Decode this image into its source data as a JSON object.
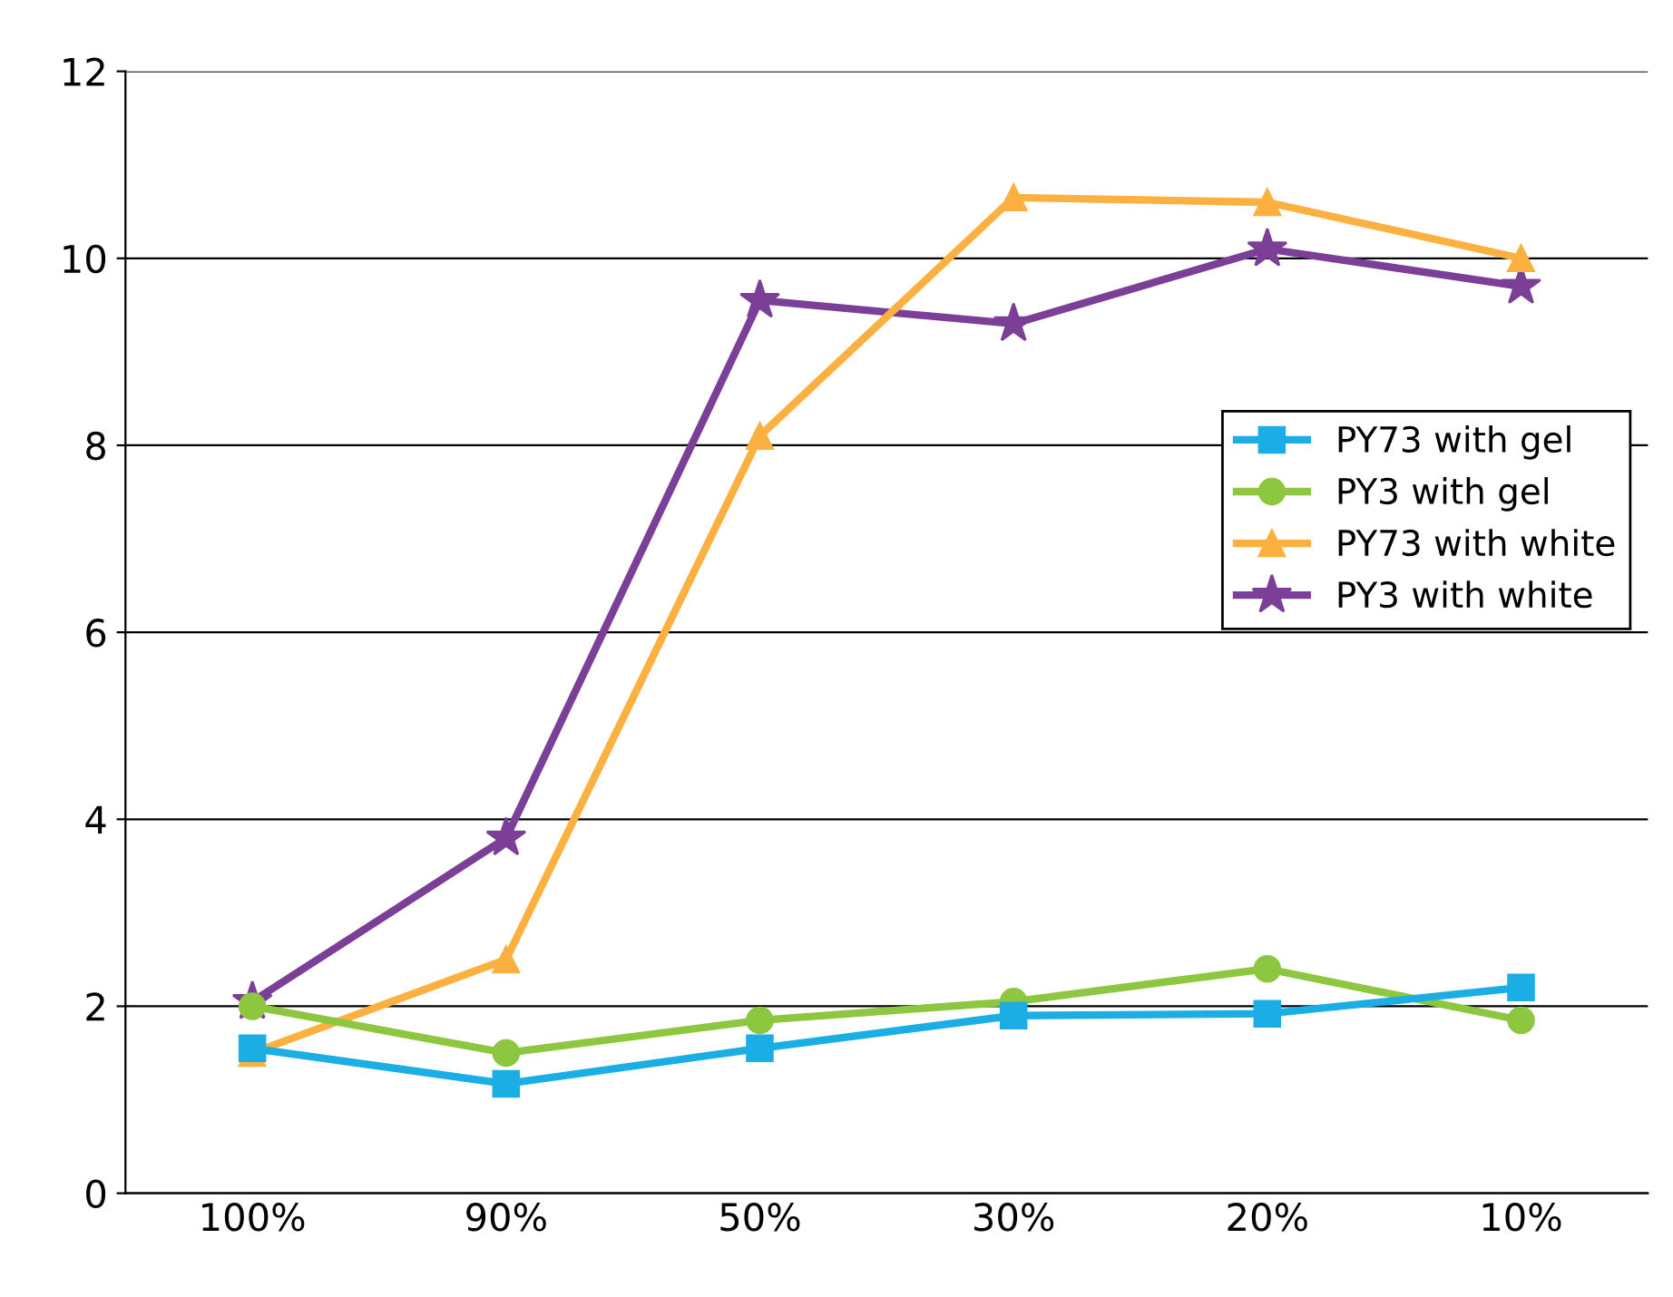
{
  "chart_data": {
    "type": "line",
    "categories": [
      "100%",
      "90%",
      "50%",
      "30%",
      "20%",
      "10%"
    ],
    "series": [
      {
        "name": "PY73 with gel",
        "color": "#1aaee5",
        "marker": "square",
        "values": [
          1.55,
          1.17,
          1.55,
          1.9,
          1.92,
          2.2
        ]
      },
      {
        "name": "PY3 with gel",
        "color": "#8dc63f",
        "marker": "circle",
        "values": [
          2.0,
          1.5,
          1.85,
          2.05,
          2.4,
          1.85
        ]
      },
      {
        "name": "PY73 with white",
        "color": "#fbb040",
        "marker": "triangle",
        "values": [
          1.5,
          2.5,
          8.1,
          10.65,
          10.6,
          10.0
        ]
      },
      {
        "name": "PY3 with white",
        "color": "#7b3f98",
        "marker": "star",
        "values": [
          2.05,
          3.8,
          9.55,
          9.3,
          10.1,
          9.7
        ]
      }
    ],
    "ylim": [
      0,
      12
    ],
    "yticks": [
      0,
      2,
      4,
      6,
      8,
      10,
      12
    ],
    "grid": "y",
    "legend": "right"
  }
}
